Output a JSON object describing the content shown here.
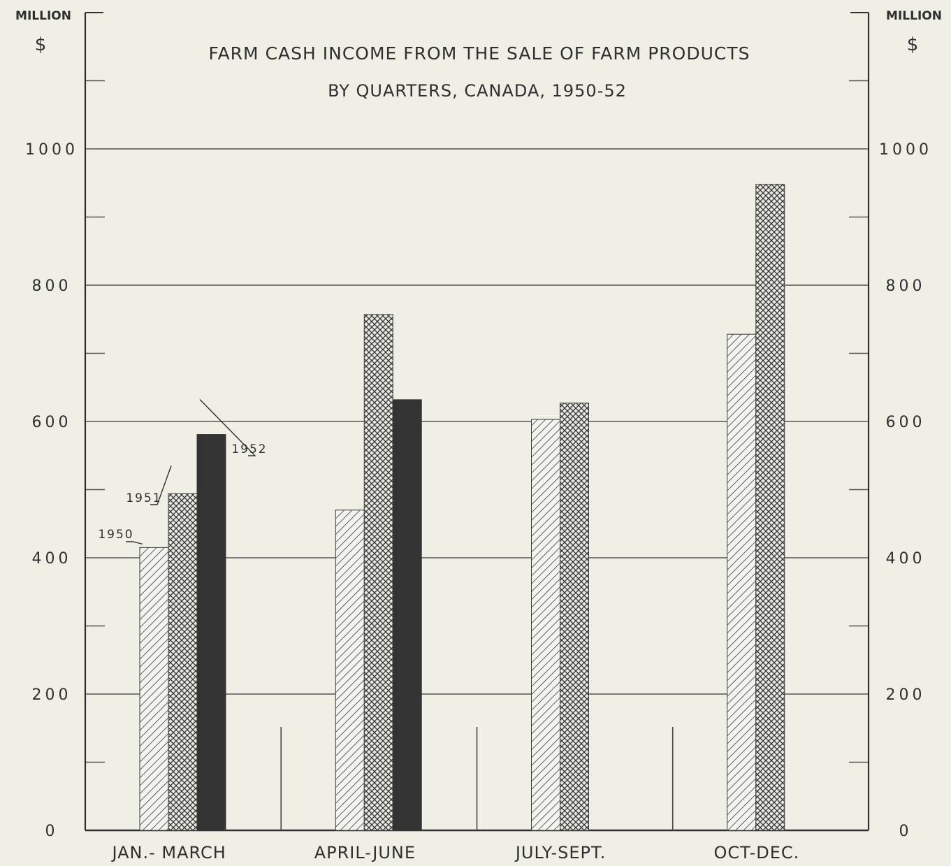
{
  "chart_data": {
    "type": "bar",
    "title": "FARM CASH INCOME FROM THE SALE OF FARM PRODUCTS",
    "subtitle": "BY QUARTERS, CANADA, 1950-52",
    "ylabel_left": "MILLION",
    "ylabel_right": "MILLION",
    "yunit": "$",
    "xlabel": "",
    "ylim": [
      0,
      1200
    ],
    "yticks": [
      0,
      200,
      400,
      600,
      800,
      1000
    ],
    "ytick_labels": [
      "0",
      "200",
      "400",
      "600",
      "800",
      "1000"
    ],
    "grid": true,
    "categories": [
      "JAN.- MARCH",
      "APRIL-JUNE",
      "JULY-SEPT.",
      "OCT-DEC."
    ],
    "series": [
      {
        "name": "1950",
        "values": [
          415,
          470,
          603,
          728
        ],
        "pattern": "diagonal-hatch"
      },
      {
        "name": "1951",
        "values": [
          494,
          757,
          627,
          948
        ],
        "pattern": "crosshatch"
      },
      {
        "name": "1952",
        "values": [
          581,
          632,
          null,
          null
        ],
        "pattern": "solid-dark"
      }
    ],
    "colors": {
      "background": "#efefe6",
      "ink": "#2f2f2f",
      "solid": "#333333"
    },
    "legend": "annotations-on-first-group"
  }
}
